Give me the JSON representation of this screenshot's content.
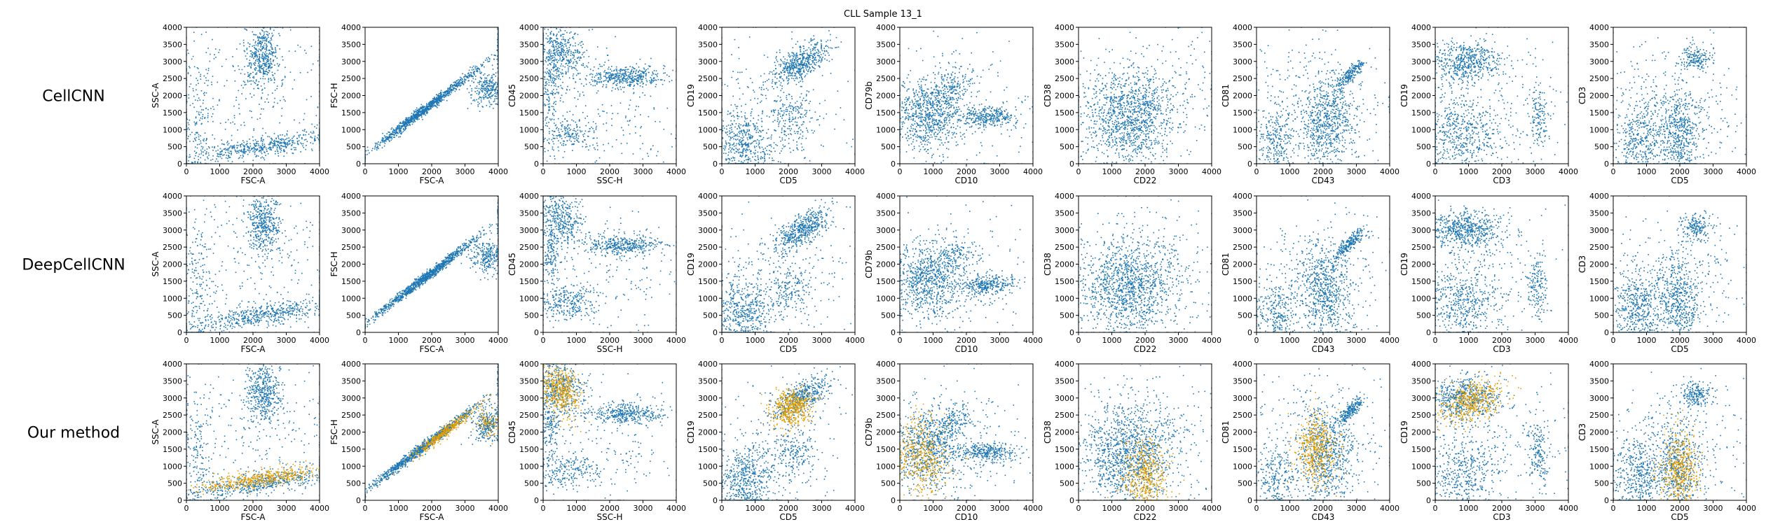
{
  "figure": {
    "title": "CLL Sample 13_1"
  },
  "colors": {
    "base": "#1f77b4",
    "highlight": "#e69f00",
    "axes": "#000000"
  },
  "chart_data": {
    "type": "scatter",
    "title": "CLL Sample 13_1",
    "xlim": [
      0,
      4000
    ],
    "ylim": [
      0,
      4000
    ],
    "ticks": [
      0,
      500,
      1000,
      1500,
      2000,
      2500,
      3000,
      3500,
      4000
    ],
    "x_ticks": [
      0,
      1000,
      2000,
      3000,
      4000
    ],
    "grid": false,
    "rows": [
      "CellCNN",
      "DeepCellCNN",
      "Our method"
    ],
    "highlight_rows": [
      "Our method"
    ],
    "panels": [
      {
        "xlabel": "FSC-A",
        "ylabel": "SSC-A",
        "clusters": [
          {
            "cx": 2300,
            "cy": 3150,
            "sx": 250,
            "sy": 450,
            "w": 0.3
          },
          {
            "cx": 2200,
            "cy": 500,
            "sx": 1200,
            "sy": 150,
            "w": 0.38,
            "tilt": 0.15
          },
          {
            "cx": 300,
            "cy": 1400,
            "sx": 250,
            "sy": 1000,
            "w": 0.12
          },
          {
            "cx": 2000,
            "cy": 2000,
            "sx": 1500,
            "sy": 1200,
            "w": 0.2
          }
        ],
        "highlight": [
          {
            "cx": 2200,
            "cy": 620,
            "sx": 900,
            "sy": 120,
            "w": 1.0,
            "tilt": 0.15
          }
        ]
      },
      {
        "xlabel": "FSC-A",
        "ylabel": "FSC-H",
        "clusters": [
          {
            "cx": 1800,
            "cy": 1600,
            "sx": 1000,
            "sy": 60,
            "w": 0.75,
            "tilt": 0.75
          },
          {
            "cx": 3700,
            "cy": 2200,
            "sx": 250,
            "sy": 250,
            "w": 0.2
          },
          {
            "cx": 4000,
            "cy": 3500,
            "sx": 15,
            "sy": 400,
            "w": 0.05
          }
        ],
        "highlight": [
          {
            "cx": 2400,
            "cy": 2000,
            "sx": 600,
            "sy": 70,
            "w": 0.8,
            "tilt": 0.75
          },
          {
            "cx": 3700,
            "cy": 2200,
            "sx": 200,
            "sy": 200,
            "w": 0.2
          }
        ]
      },
      {
        "xlabel": "SSC-H",
        "ylabel": "CD45",
        "clusters": [
          {
            "cx": 500,
            "cy": 3300,
            "sx": 350,
            "sy": 450,
            "w": 0.3,
            "tilt": 0.5
          },
          {
            "cx": 2500,
            "cy": 2550,
            "sx": 600,
            "sy": 150,
            "w": 0.28
          },
          {
            "cx": 700,
            "cy": 850,
            "sx": 500,
            "sy": 250,
            "w": 0.17
          },
          {
            "cx": 200,
            "cy": 2200,
            "sx": 150,
            "sy": 500,
            "w": 0.1
          },
          {
            "cx": 1800,
            "cy": 1500,
            "sx": 1300,
            "sy": 1100,
            "w": 0.15
          }
        ],
        "highlight": [
          {
            "cx": 500,
            "cy": 3200,
            "sx": 300,
            "sy": 400,
            "w": 1.0,
            "tilt": 0.5
          }
        ]
      },
      {
        "xlabel": "CD5",
        "ylabel": "CD19",
        "clusters": [
          {
            "cx": 2400,
            "cy": 3000,
            "sx": 500,
            "sy": 200,
            "w": 0.35,
            "tilt": 0.65
          },
          {
            "cx": 700,
            "cy": 600,
            "sx": 450,
            "sy": 500,
            "w": 0.35
          },
          {
            "cx": 2100,
            "cy": 1300,
            "sx": 300,
            "sy": 400,
            "w": 0.12
          },
          {
            "cx": 1600,
            "cy": 1600,
            "sx": 1300,
            "sy": 1100,
            "w": 0.18
          }
        ],
        "highlight": [
          {
            "cx": 2100,
            "cy": 2700,
            "sx": 300,
            "sy": 280,
            "w": 1.0,
            "tilt": 0.4
          }
        ]
      },
      {
        "xlabel": "CD10",
        "ylabel": "CD79b",
        "clusters": [
          {
            "cx": 800,
            "cy": 1500,
            "sx": 500,
            "sy": 550,
            "w": 0.5
          },
          {
            "cx": 2600,
            "cy": 1400,
            "sx": 450,
            "sy": 150,
            "w": 0.22
          },
          {
            "cx": 1600,
            "cy": 2200,
            "sx": 400,
            "sy": 250,
            "w": 0.12,
            "tilt": 0.6
          },
          {
            "cx": 1800,
            "cy": 1500,
            "sx": 1300,
            "sy": 1100,
            "w": 0.16
          }
        ],
        "highlight": [
          {
            "cx": 650,
            "cy": 1300,
            "sx": 380,
            "sy": 600,
            "w": 1.0
          }
        ]
      },
      {
        "xlabel": "CD22",
        "ylabel": "CD38",
        "clusters": [
          {
            "cx": 1500,
            "cy": 1300,
            "sx": 700,
            "sy": 700,
            "w": 0.75
          },
          {
            "cx": 2000,
            "cy": 1800,
            "sx": 1200,
            "sy": 1000,
            "w": 0.25
          }
        ],
        "highlight": [
          {
            "cx": 2000,
            "cy": 700,
            "sx": 350,
            "sy": 550,
            "w": 1.0
          }
        ]
      },
      {
        "xlabel": "CD43",
        "ylabel": "CD81",
        "clusters": [
          {
            "cx": 2100,
            "cy": 1200,
            "sx": 400,
            "sy": 700,
            "w": 0.45
          },
          {
            "cx": 2800,
            "cy": 2600,
            "sx": 300,
            "sy": 80,
            "w": 0.15,
            "tilt": 1.0
          },
          {
            "cx": 600,
            "cy": 600,
            "sx": 300,
            "sy": 450,
            "w": 0.17
          },
          {
            "cx": 1800,
            "cy": 1700,
            "sx": 1200,
            "sy": 1000,
            "w": 0.23
          }
        ],
        "highlight": [
          {
            "cx": 1800,
            "cy": 1500,
            "sx": 300,
            "sy": 500,
            "w": 1.0
          }
        ]
      },
      {
        "xlabel": "CD3",
        "ylabel": "CD19",
        "clusters": [
          {
            "cx": 900,
            "cy": 3000,
            "sx": 550,
            "sy": 300,
            "w": 0.4
          },
          {
            "cx": 800,
            "cy": 800,
            "sx": 600,
            "sy": 600,
            "w": 0.35
          },
          {
            "cx": 3100,
            "cy": 1400,
            "sx": 150,
            "sy": 500,
            "w": 0.1
          },
          {
            "cx": 1600,
            "cy": 1800,
            "sx": 1300,
            "sy": 1100,
            "w": 0.15
          }
        ],
        "highlight": [
          {
            "cx": 1100,
            "cy": 2900,
            "sx": 500,
            "sy": 300,
            "w": 1.0,
            "tilt": 0.3
          }
        ]
      },
      {
        "xlabel": "CD5",
        "ylabel": "CD3",
        "clusters": [
          {
            "cx": 2000,
            "cy": 900,
            "sx": 300,
            "sy": 650,
            "w": 0.35
          },
          {
            "cx": 800,
            "cy": 700,
            "sx": 400,
            "sy": 550,
            "w": 0.3
          },
          {
            "cx": 2500,
            "cy": 3100,
            "sx": 250,
            "sy": 180,
            "w": 0.12
          },
          {
            "cx": 1800,
            "cy": 1600,
            "sx": 1200,
            "sy": 1000,
            "w": 0.23
          }
        ],
        "highlight": [
          {
            "cx": 2000,
            "cy": 900,
            "sx": 280,
            "sy": 600,
            "w": 1.0
          }
        ]
      }
    ]
  }
}
